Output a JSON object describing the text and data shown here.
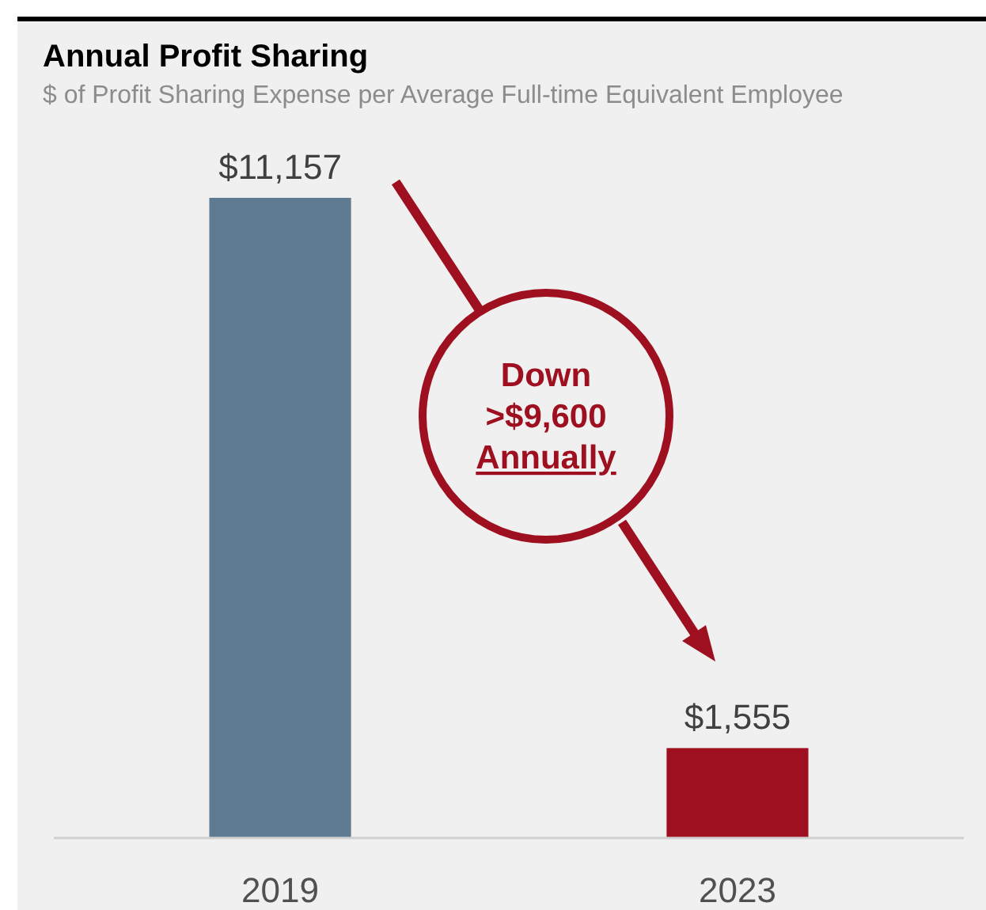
{
  "chart_data": {
    "type": "bar",
    "title": "Annual Profit Sharing",
    "subtitle": "$ of Profit Sharing Expense per Average Full-time Equivalent Employee",
    "categories": [
      "2019",
      "2023"
    ],
    "values": [
      11157,
      1555
    ],
    "colors": [
      "#5e7b91",
      "#9e1020"
    ],
    "value_labels": [
      "$11,157",
      "$1,555"
    ],
    "annotations": [
      "Down\n>$9,600\nAnnually"
    ]
  }
}
